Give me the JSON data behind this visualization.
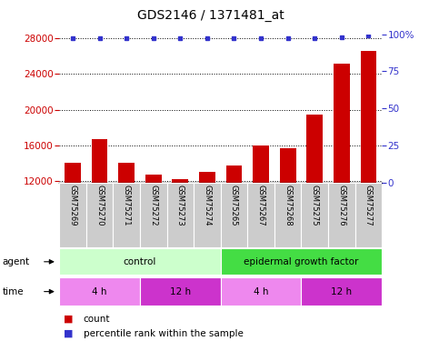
{
  "title": "GDS2146 / 1371481_at",
  "samples": [
    "GSM75269",
    "GSM75270",
    "GSM75271",
    "GSM75272",
    "GSM75273",
    "GSM75274",
    "GSM75265",
    "GSM75267",
    "GSM75268",
    "GSM75275",
    "GSM75276",
    "GSM75277"
  ],
  "counts": [
    14000,
    16700,
    14000,
    12700,
    12200,
    13000,
    13700,
    16000,
    15700,
    19400,
    25200,
    26600
  ],
  "percentile_ranks": [
    97,
    97,
    97,
    97,
    97,
    97,
    97,
    97,
    97,
    97,
    98,
    99
  ],
  "bar_color": "#cc0000",
  "dot_color": "#3333cc",
  "ylim_left": [
    11800,
    28500
  ],
  "ylim_right": [
    0,
    100
  ],
  "yticks_left": [
    12000,
    16000,
    20000,
    24000,
    28000
  ],
  "yticks_right": [
    0,
    25,
    50,
    75,
    100
  ],
  "grid_y": [
    12000,
    16000,
    20000,
    24000,
    28000
  ],
  "agent_groups": [
    {
      "label": "control",
      "start": 0,
      "end": 5,
      "color": "#ccffcc"
    },
    {
      "label": "epidermal growth factor",
      "start": 6,
      "end": 11,
      "color": "#44dd44"
    }
  ],
  "time_groups": [
    {
      "label": "4 h",
      "start": 0,
      "end": 2,
      "color": "#ee88ee"
    },
    {
      "label": "12 h",
      "start": 3,
      "end": 5,
      "color": "#cc33cc"
    },
    {
      "label": "4 h",
      "start": 6,
      "end": 8,
      "color": "#ee88ee"
    },
    {
      "label": "12 h",
      "start": 9,
      "end": 11,
      "color": "#cc33cc"
    }
  ],
  "legend_count_color": "#cc0000",
  "legend_dot_color": "#3333cc",
  "bg_sample_color": "#cccccc",
  "bar_width": 0.6
}
